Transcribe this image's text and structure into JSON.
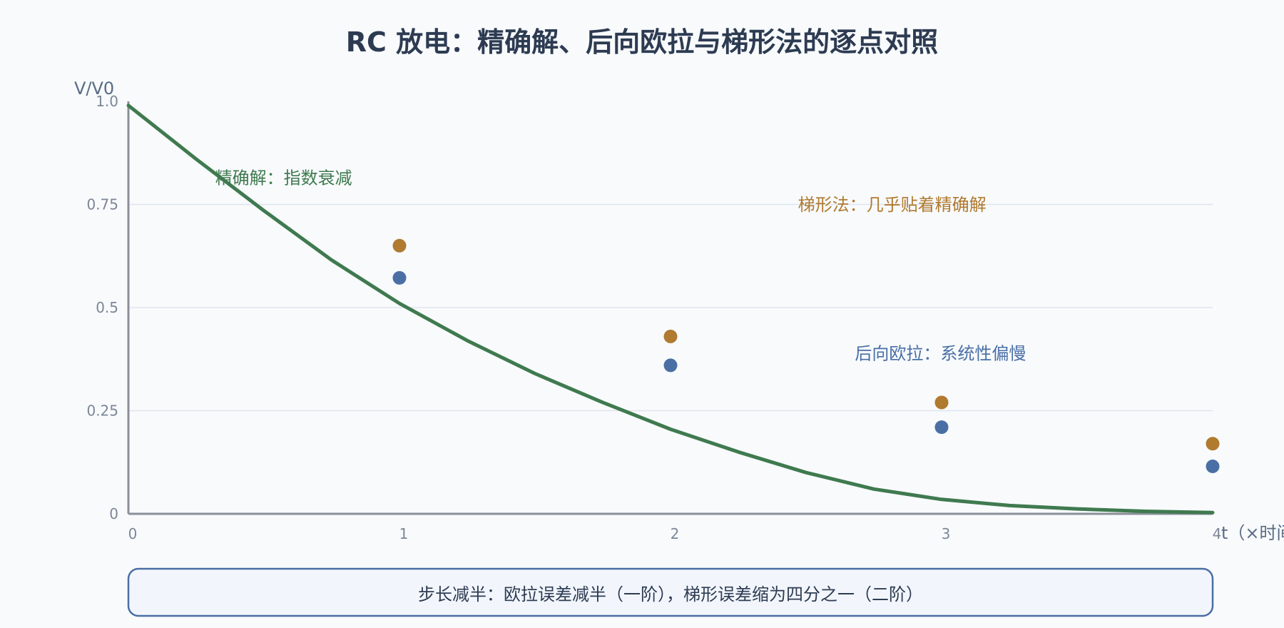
{
  "chart_data": {
    "type": "line",
    "title": "RC 放电：精确解、后向欧拉与梯形法的逐点对照",
    "ylabel": "V/V0",
    "xlabel": "t（×时间",
    "xlim": [
      0,
      4
    ],
    "ylim": [
      0,
      1.0
    ],
    "x_ticks": [
      {
        "value": 0,
        "label": "0"
      },
      {
        "value": 1,
        "label": "1"
      },
      {
        "value": 2,
        "label": "2"
      },
      {
        "value": 3,
        "label": "3"
      },
      {
        "value": 4,
        "label": "4"
      }
    ],
    "y_ticks": [
      {
        "value": 0,
        "label": "0"
      },
      {
        "value": 0.25,
        "label": "0.25"
      },
      {
        "value": 0.5,
        "label": "0.5"
      },
      {
        "value": 0.75,
        "label": "0.75"
      },
      {
        "value": 1.0,
        "label": "1.0"
      }
    ],
    "series": [
      {
        "key": "exact",
        "color": "#3f7a4f",
        "x": [
          0,
          0.25,
          0.5,
          0.75,
          1.0,
          1.25,
          1.5,
          1.75,
          2.0,
          2.25,
          2.5,
          2.75,
          3.0,
          3.25,
          3.5,
          3.75,
          4.0
        ],
        "y": [
          0.99,
          0.86,
          0.735,
          0.615,
          0.51,
          0.42,
          0.34,
          0.27,
          0.205,
          0.15,
          0.1,
          0.06,
          0.035,
          0.02,
          0.012,
          0.006,
          0.003
        ]
      },
      {
        "key": "trapezoid",
        "color": "#b07a2f",
        "x": [
          1,
          2,
          3,
          4
        ],
        "y": [
          0.65,
          0.43,
          0.27,
          0.17
        ]
      },
      {
        "key": "backward_euler",
        "color": "#4a6fa5",
        "x": [
          1,
          2,
          3,
          4
        ],
        "y": [
          0.572,
          0.36,
          0.21,
          0.115
        ]
      }
    ],
    "annotations": [
      {
        "text": "精确解：指数衰减",
        "color": "#3f7a4f",
        "x": 0.32,
        "y": 0.8
      },
      {
        "text": "梯形法：几乎贴着精确解",
        "color": "#b07a2f",
        "x": 2.47,
        "y": 0.735
      },
      {
        "text": "后向欧拉：系统性偏慢",
        "color": "#4a6fa5",
        "x": 2.68,
        "y": 0.375
      }
    ],
    "note": "步长减半：欧拉误差减半（一阶），梯形误差缩为四分之一（二阶）",
    "colors": {
      "axis": "#8a8f99",
      "grid": "#dfe5ee",
      "note_border": "#4a6fa5",
      "note_fill": "#f2f6fc"
    }
  }
}
